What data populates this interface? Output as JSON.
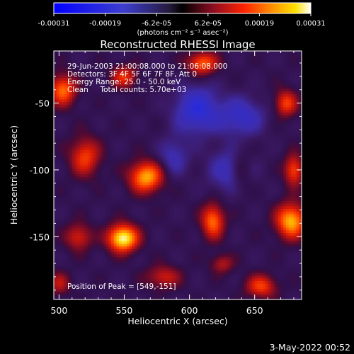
{
  "chart_data": {
    "type": "heatmap",
    "title": "Reconstructed RHESSI Image",
    "xlabel": "Heliocentric X (arcsec)",
    "ylabel": "Heliocentric Y (arcsec)",
    "xlim": [
      496,
      686
    ],
    "ylim": [
      -197,
      -11
    ],
    "x_ticks": [
      500,
      550,
      600,
      650
    ],
    "y_ticks": [
      -50,
      -100,
      -150
    ],
    "colorbar": {
      "ticks": [
        "-0.00031",
        "-0.00019",
        "-6.2e-05",
        "6.2e-05",
        "0.00019",
        "0.00031"
      ],
      "range": [
        -0.00031,
        0.00031
      ],
      "unit_label": "(photons cm⁻² s⁻¹ asec⁻²)"
    },
    "annotations": [
      "29-Jun-2003 21:00:08.000 to 21:06:08.000",
      "Detectors: 3F 4F 5F 6F 7F 8F, Att 0",
      "Energy Range: 25.0 - 50.0 keV",
      "Clean     Total counts: 5.70e+03"
    ],
    "peak_label": "Position of Peak = [549,-151]",
    "peak": [
      549,
      -151
    ],
    "grid": false,
    "sources": [
      {
        "x": 549,
        "y": -151,
        "value": 0.00031,
        "sx": 8,
        "sy": 7
      },
      {
        "x": 567,
        "y": -105,
        "value": 0.00024,
        "sx": 9,
        "sy": 8
      },
      {
        "x": 678,
        "y": -138,
        "value": 0.00025,
        "sx": 8,
        "sy": 9
      },
      {
        "x": 503,
        "y": -40,
        "value": 0.0002,
        "sx": 7,
        "sy": 8
      },
      {
        "x": 618,
        "y": -138,
        "value": 0.0002,
        "sx": 6,
        "sy": 9
      },
      {
        "x": 610,
        "y": -20,
        "value": 0.00019,
        "sx": 8,
        "sy": 6
      },
      {
        "x": 520,
        "y": -90,
        "value": 0.00016,
        "sx": 8,
        "sy": 10
      },
      {
        "x": 680,
        "y": -100,
        "value": 0.00017,
        "sx": 5,
        "sy": 8
      },
      {
        "x": 674,
        "y": -50,
        "value": 0.00016,
        "sx": 6,
        "sy": 7
      },
      {
        "x": 655,
        "y": -187,
        "value": 0.00016,
        "sx": 8,
        "sy": 6
      },
      {
        "x": 550,
        "y": -30,
        "value": 0.00014,
        "sx": 7,
        "sy": 6
      },
      {
        "x": 515,
        "y": -150,
        "value": 0.00013,
        "sx": 7,
        "sy": 7
      },
      {
        "x": 580,
        "y": -180,
        "value": 0.00012,
        "sx": 9,
        "sy": 6
      },
      {
        "x": 640,
        "y": -100,
        "value": 0.0001,
        "sx": 6,
        "sy": 12
      },
      {
        "x": 500,
        "y": -185,
        "value": 0.0001,
        "sx": 6,
        "sy": 6
      },
      {
        "x": 625,
        "y": -170,
        "value": 0.0001,
        "sx": 6,
        "sy": 5
      },
      {
        "x": 606,
        "y": -55,
        "value": -0.00018,
        "sx": 12,
        "sy": 12
      },
      {
        "x": 640,
        "y": -60,
        "value": -0.00014,
        "sx": 12,
        "sy": 10
      },
      {
        "x": 632,
        "y": -100,
        "value": -0.00012,
        "sx": 12,
        "sy": 12
      },
      {
        "x": 588,
        "y": -90,
        "value": -0.0001,
        "sx": 8,
        "sy": 10
      }
    ]
  },
  "footer": {
    "date": "3-May-2022 00:52"
  }
}
